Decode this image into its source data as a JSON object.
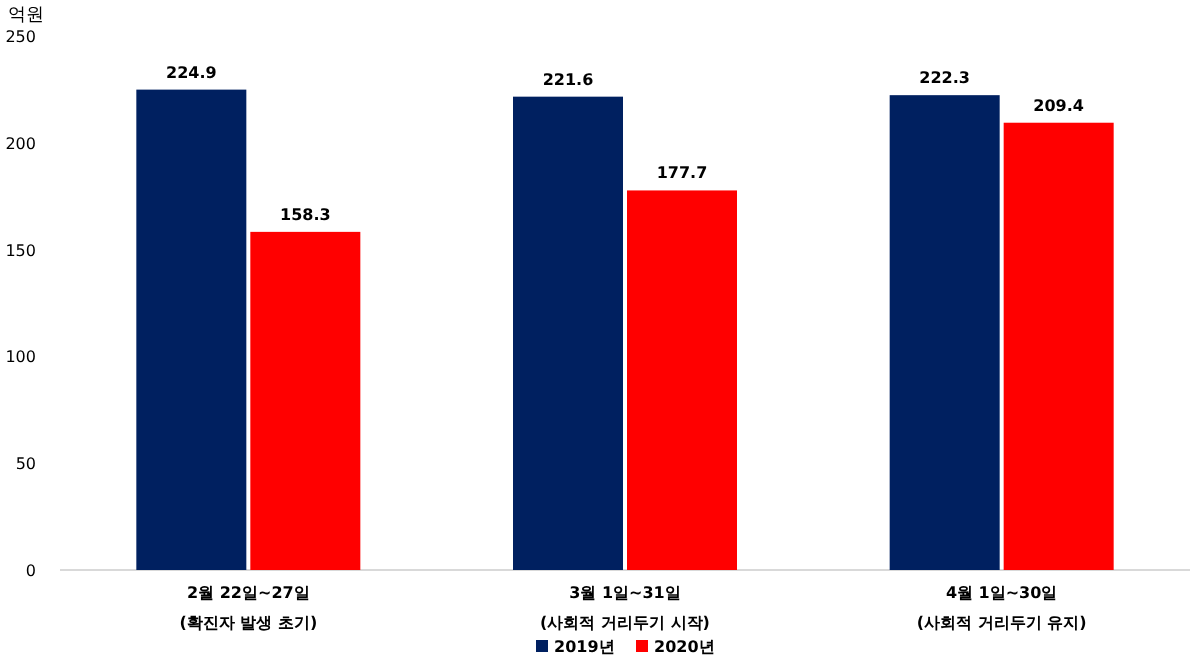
{
  "chart_data": {
    "type": "bar",
    "ylabel": "억원",
    "categories": [
      "2월 22일~27일\n(확진자 발생 초기)",
      "3월 1일~31일\n(사회적 거리두기 시작)",
      "4월 1일~30일\n(사회적 거리두기 유지)"
    ],
    "series": [
      {
        "name": "2019년",
        "color": "#002060",
        "values": [
          224.9,
          221.6,
          222.3
        ]
      },
      {
        "name": "2020년",
        "color": "#ff0000",
        "values": [
          158.3,
          177.7,
          209.4
        ]
      }
    ],
    "ylim": [
      0,
      250
    ],
    "yticks": [
      0,
      50,
      100,
      150,
      200,
      250
    ],
    "data_labels": true,
    "legend": "bottom",
    "grid": false
  }
}
